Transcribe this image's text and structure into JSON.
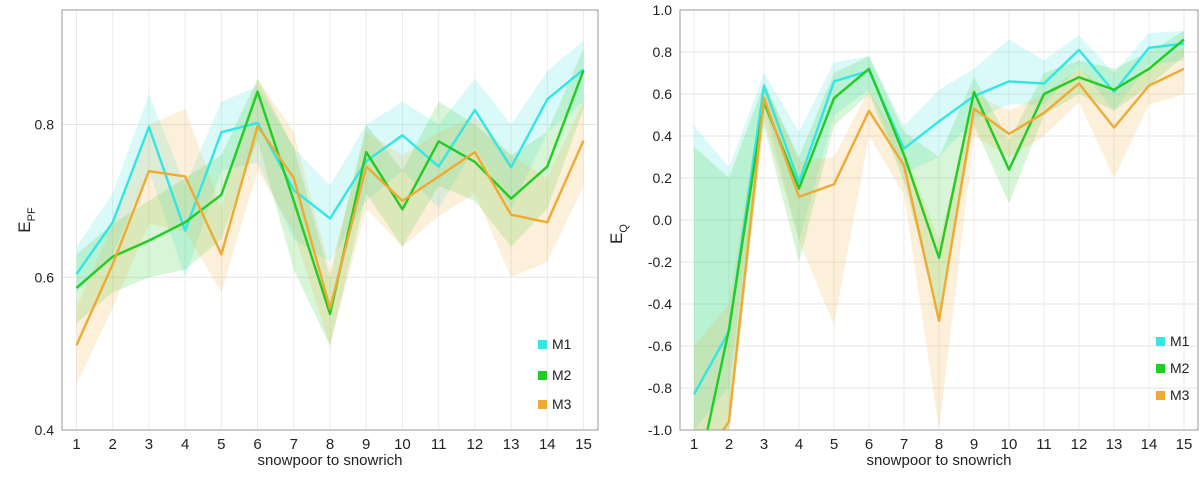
{
  "chart_data": [
    {
      "type": "line",
      "ylabel_main": "E",
      "ylabel_sub": "PF",
      "xlabel": "snowpoor to snowrich",
      "x": [
        1,
        2,
        3,
        4,
        5,
        6,
        7,
        8,
        9,
        10,
        11,
        12,
        13,
        14,
        15
      ],
      "xlim": [
        0.6,
        15.4
      ],
      "ylim": [
        0.4,
        0.95
      ],
      "yticks": [
        0.4,
        0.6,
        0.8
      ],
      "ytick_labels": [
        "0.4",
        "0.6",
        "0.8"
      ],
      "grid": true,
      "legend_position": "bottom-right",
      "series": [
        {
          "name": "M1",
          "color": "#33e6e6",
          "values": [
            0.604,
            0.672,
            0.797,
            0.661,
            0.79,
            0.802,
            0.714,
            0.677,
            0.752,
            0.786,
            0.745,
            0.819,
            0.744,
            0.833,
            0.872
          ],
          "lower": [
            0.58,
            0.63,
            0.74,
            0.6,
            0.74,
            0.75,
            0.65,
            0.62,
            0.7,
            0.74,
            0.69,
            0.77,
            0.69,
            0.79,
            0.83
          ],
          "upper": [
            0.64,
            0.71,
            0.84,
            0.72,
            0.83,
            0.85,
            0.77,
            0.72,
            0.8,
            0.83,
            0.8,
            0.86,
            0.8,
            0.87,
            0.91
          ]
        },
        {
          "name": "M2",
          "color": "#22cc22",
          "values": [
            0.586,
            0.627,
            0.648,
            0.672,
            0.708,
            0.843,
            0.7,
            0.552,
            0.764,
            0.689,
            0.778,
            0.751,
            0.703,
            0.745,
            0.871
          ],
          "lower": [
            0.54,
            0.58,
            0.6,
            0.61,
            0.65,
            0.78,
            0.61,
            0.51,
            0.71,
            0.64,
            0.72,
            0.7,
            0.64,
            0.69,
            0.82
          ],
          "upper": [
            0.63,
            0.67,
            0.7,
            0.73,
            0.76,
            0.86,
            0.77,
            0.6,
            0.8,
            0.74,
            0.83,
            0.8,
            0.76,
            0.79,
            0.9
          ]
        },
        {
          "name": "M3",
          "color": "#eeaa33",
          "values": [
            0.511,
            0.617,
            0.739,
            0.732,
            0.63,
            0.798,
            0.73,
            0.559,
            0.745,
            0.7,
            0.732,
            0.764,
            0.682,
            0.672,
            0.779
          ],
          "lower": [
            0.46,
            0.56,
            0.67,
            0.66,
            0.58,
            0.74,
            0.66,
            0.51,
            0.69,
            0.64,
            0.68,
            0.71,
            0.6,
            0.62,
            0.72
          ],
          "upper": [
            0.56,
            0.67,
            0.8,
            0.82,
            0.69,
            0.86,
            0.79,
            0.61,
            0.79,
            0.76,
            0.79,
            0.81,
            0.76,
            0.73,
            0.83
          ]
        }
      ]
    },
    {
      "type": "line",
      "ylabel_main": "E",
      "ylabel_sub": "Q",
      "xlabel": "snowpoor to snowrich",
      "x": [
        1,
        2,
        3,
        4,
        5,
        6,
        7,
        8,
        9,
        10,
        11,
        12,
        13,
        14,
        15
      ],
      "xlim": [
        0.6,
        15.4
      ],
      "ylim": [
        -1.0,
        1.0
      ],
      "yticks": [
        -1.0,
        -0.8,
        -0.6,
        -0.4,
        -0.2,
        0.0,
        0.2,
        0.4,
        0.6,
        0.8,
        1.0
      ],
      "ytick_labels": [
        "-1.0",
        "-0.8",
        "-0.6",
        "-0.4",
        "-0.2",
        "0.0",
        "0.2",
        "0.4",
        "0.6",
        "0.8",
        "1.0"
      ],
      "grid": true,
      "legend_position": "bottom-right",
      "series": [
        {
          "name": "M1",
          "color": "#33e6e6",
          "values": [
            -0.83,
            -0.53,
            0.64,
            0.18,
            0.66,
            0.71,
            0.34,
            0.47,
            0.59,
            0.66,
            0.65,
            0.81,
            0.61,
            0.82,
            0.84
          ],
          "lower": [
            -1.0,
            -0.8,
            0.55,
            -0.1,
            0.5,
            0.62,
            0.22,
            0.3,
            0.48,
            0.55,
            0.55,
            0.73,
            0.52,
            0.74,
            0.76
          ],
          "upper": [
            0.45,
            0.25,
            0.7,
            0.42,
            0.75,
            0.78,
            0.45,
            0.62,
            0.72,
            0.86,
            0.76,
            0.88,
            0.7,
            0.89,
            0.9
          ]
        },
        {
          "name": "M2",
          "color": "#22cc22",
          "values": [
            -1.3,
            -0.52,
            0.56,
            0.15,
            0.58,
            0.72,
            0.31,
            -0.18,
            0.61,
            0.24,
            0.6,
            0.68,
            0.62,
            0.72,
            0.86
          ],
          "lower": [
            -1.0,
            -1.0,
            0.45,
            -0.2,
            0.45,
            0.6,
            0.18,
            -0.45,
            0.45,
            0.08,
            0.5,
            0.6,
            0.52,
            0.64,
            0.78
          ],
          "upper": [
            0.35,
            0.2,
            0.65,
            0.3,
            0.7,
            0.78,
            0.42,
            0.3,
            0.68,
            0.38,
            0.7,
            0.76,
            0.72,
            0.8,
            0.9
          ]
        },
        {
          "name": "M3",
          "color": "#eeaa33",
          "values": [
            -1.2,
            -0.96,
            0.58,
            0.11,
            0.17,
            0.52,
            0.26,
            -0.48,
            0.53,
            0.41,
            0.51,
            0.65,
            0.44,
            0.64,
            0.72
          ],
          "lower": [
            -1.0,
            -1.0,
            0.48,
            -0.1,
            -0.5,
            0.4,
            0.12,
            -1.0,
            0.4,
            0.3,
            0.4,
            0.56,
            0.2,
            0.55,
            0.6
          ],
          "upper": [
            -0.6,
            -0.4,
            0.66,
            0.28,
            0.3,
            0.62,
            0.34,
            -0.1,
            0.6,
            0.52,
            0.6,
            0.72,
            0.6,
            0.72,
            0.82
          ]
        }
      ]
    }
  ]
}
